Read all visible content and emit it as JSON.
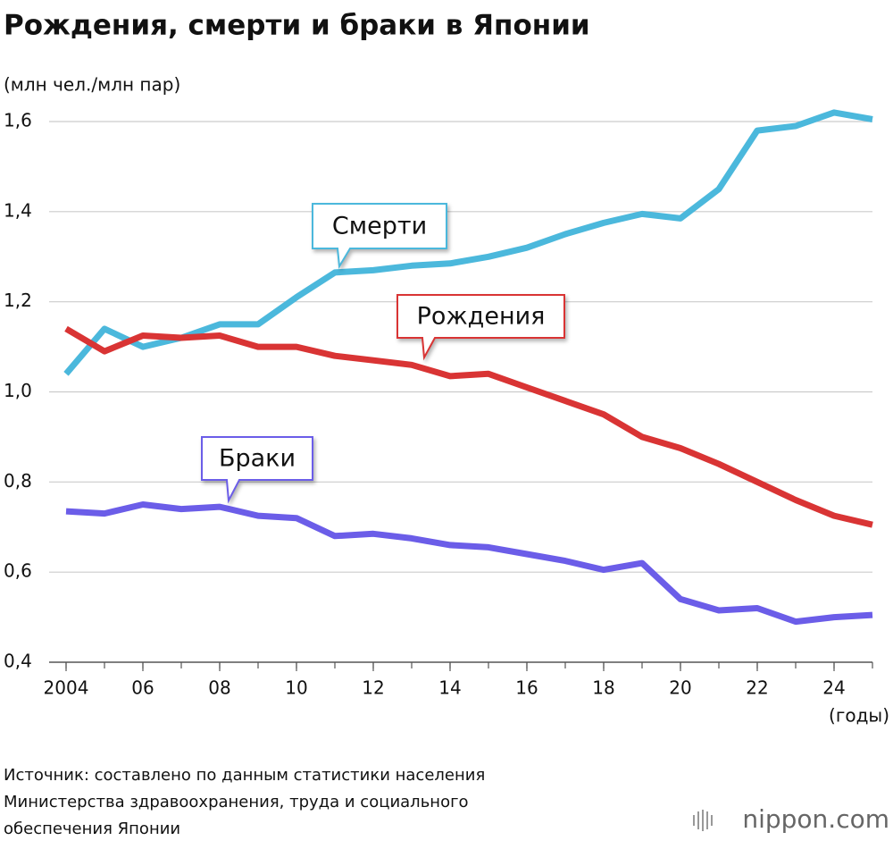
{
  "chart_data": {
    "type": "line",
    "title": "Рождения, смерти и браки в Японии",
    "y_label": "(млн чел./млн пар)",
    "x_label": "(годы)",
    "source": [
      "Источник: составлено по данным статистики населения",
      "Министерства здравоохранения, труда и социального",
      "обеспечения Японии"
    ],
    "logo": "nippon.com",
    "x": [
      2004,
      2005,
      2006,
      2007,
      2008,
      2009,
      2010,
      2011,
      2012,
      2013,
      2014,
      2015,
      2016,
      2017,
      2018,
      2019,
      2020,
      2021,
      2022,
      2023,
      2024,
      2025
    ],
    "series": [
      {
        "name": "Смерти",
        "color": "#4bb8dc",
        "values": [
          1.04,
          1.14,
          1.1,
          1.12,
          1.15,
          1.15,
          1.21,
          1.265,
          1.27,
          1.28,
          1.285,
          1.3,
          1.32,
          1.35,
          1.375,
          1.395,
          1.385,
          1.45,
          1.58,
          1.59,
          1.62,
          1.605
        ]
      },
      {
        "name": "Рождения",
        "color": "#d93434",
        "values": [
          1.14,
          1.09,
          1.125,
          1.12,
          1.125,
          1.1,
          1.1,
          1.08,
          1.07,
          1.06,
          1.035,
          1.04,
          1.01,
          0.98,
          0.95,
          0.9,
          0.875,
          0.84,
          0.8,
          0.76,
          0.725,
          0.705
        ]
      },
      {
        "name": "Браки",
        "color": "#6b5de8",
        "values": [
          0.735,
          0.73,
          0.75,
          0.74,
          0.745,
          0.725,
          0.72,
          0.68,
          0.685,
          0.675,
          0.66,
          0.655,
          0.64,
          0.625,
          0.605,
          0.62,
          0.54,
          0.515,
          0.52,
          0.49,
          0.5,
          0.505
        ]
      }
    ],
    "xlim": [
      2004,
      2025
    ],
    "xticks": [
      2004,
      {
        "value": 2006,
        "label": "06"
      },
      {
        "value": 2008,
        "label": "08"
      },
      {
        "value": 2010,
        "label": "10"
      },
      {
        "value": 2012,
        "label": "12"
      },
      {
        "value": 2014,
        "label": "14"
      },
      {
        "value": 2016,
        "label": "16"
      },
      {
        "value": 2018,
        "label": "18"
      },
      {
        "value": 2020,
        "label": "20"
      },
      {
        "value": 2022,
        "label": "22"
      },
      {
        "value": 2024,
        "label": "24"
      }
    ],
    "ylim": [
      0.4,
      1.6
    ],
    "yticks": [
      {
        "value": 0.4,
        "label": "0,4"
      },
      {
        "value": 0.6,
        "label": "0,6"
      },
      {
        "value": 0.8,
        "label": "0,8"
      },
      {
        "value": 1.0,
        "label": "1,0"
      },
      {
        "value": 1.2,
        "label": "1,2"
      },
      {
        "value": 1.4,
        "label": "1,4"
      },
      {
        "value": 1.6,
        "label": "1,6"
      }
    ],
    "grid": true
  }
}
